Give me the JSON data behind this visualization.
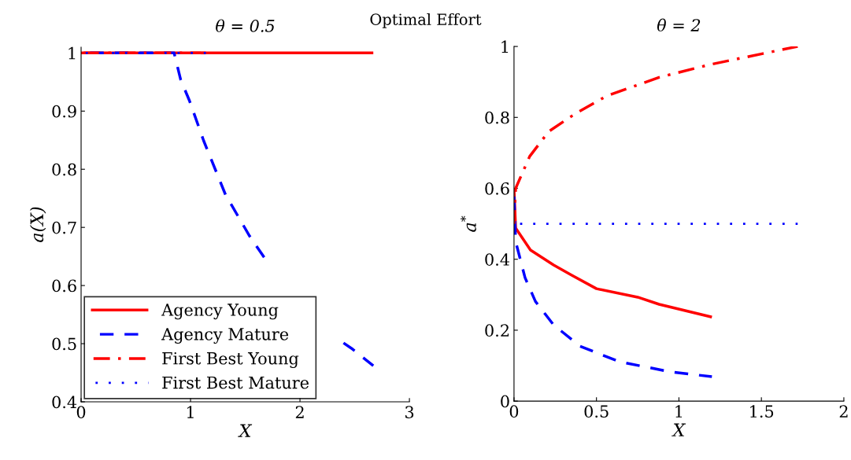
{
  "chart_data": [
    {
      "type": "line",
      "title": "θ = 0.5",
      "xlabel": "X",
      "ylabel": "a(X)",
      "annotations": [
        "Optimal Effort"
      ],
      "xlim": [
        0,
        3
      ],
      "ylim": [
        0.4,
        1.01
      ],
      "xticks": [
        0,
        1,
        2,
        3
      ],
      "yticks": [
        0.4,
        0.5,
        0.6,
        0.7,
        0.8,
        0.9,
        1
      ],
      "legend": "bottom left",
      "grid": false,
      "series": [
        {
          "name": "Agency Young",
          "color": "#ff0000",
          "line_style": "solid",
          "x": [
            0,
            2.67
          ],
          "values": [
            1,
            1
          ]
        },
        {
          "name": "Agency Mature",
          "color": "#0000ff",
          "line_style": "dashed",
          "x": [
            0,
            0.85,
            0.91,
            0.99,
            1.12,
            1.32,
            1.54,
            1.7,
            1.9,
            2.1,
            2.33,
            2.47,
            2.67
          ],
          "values": [
            1,
            1,
            0.954,
            0.918,
            0.849,
            0.756,
            0.685,
            0.641,
            null,
            null,
            0.51,
            0.492,
            0.462
          ]
        },
        {
          "name": "First Best Young",
          "color": "#ff0000",
          "line_style": "dashdot",
          "x": [
            0,
            1.14
          ],
          "values": [
            1,
            1
          ]
        },
        {
          "name": "First Best Mature",
          "color": "#0000ff",
          "line_style": "dotted",
          "x": [
            0,
            1.14
          ],
          "values": [
            1,
            1
          ]
        }
      ]
    },
    {
      "type": "line",
      "title": "θ = 2",
      "xlabel": "X",
      "ylabel": "a$^{*}$",
      "xlim": [
        0,
        2
      ],
      "ylim": [
        0,
        1
      ],
      "xticks": [
        0,
        0.5,
        1,
        1.5,
        2
      ],
      "yticks": [
        0,
        0.2,
        0.4,
        0.6,
        0.8,
        1
      ],
      "grid": false,
      "series": [
        {
          "color": "#ff0000",
          "line_style": "solid",
          "x": [
            0,
            0.01,
            0.1,
            0.24,
            0.35,
            0.5,
            0.75,
            0.88,
            1.2
          ],
          "values": [
            0.6,
            0.488,
            0.426,
            0.384,
            0.355,
            0.317,
            0.293,
            0.273,
            0.237
          ]
        },
        {
          "color": "#0000ff",
          "line_style": "dashed",
          "x": [
            0,
            0.01,
            0.067,
            0.13,
            0.24,
            0.4,
            0.64,
            0.955,
            1.2
          ],
          "values": [
            0.58,
            0.45,
            0.348,
            0.281,
            0.215,
            0.155,
            0.111,
            0.082,
            0.069
          ]
        },
        {
          "color": "#ff0000",
          "line_style": "dashdot",
          "x": [
            0,
            0.01,
            0.095,
            0.21,
            0.37,
            0.56,
            0.88,
            1.19,
            1.51,
            1.72
          ],
          "values": [
            0.5,
            0.6,
            0.69,
            0.76,
            0.81,
            0.86,
            0.913,
            0.949,
            0.98,
            1.0
          ]
        },
        {
          "color": "#0000ff",
          "line_style": "dotted",
          "x": [
            0,
            1.72
          ],
          "values": [
            0.5,
            0.5
          ]
        }
      ]
    }
  ]
}
